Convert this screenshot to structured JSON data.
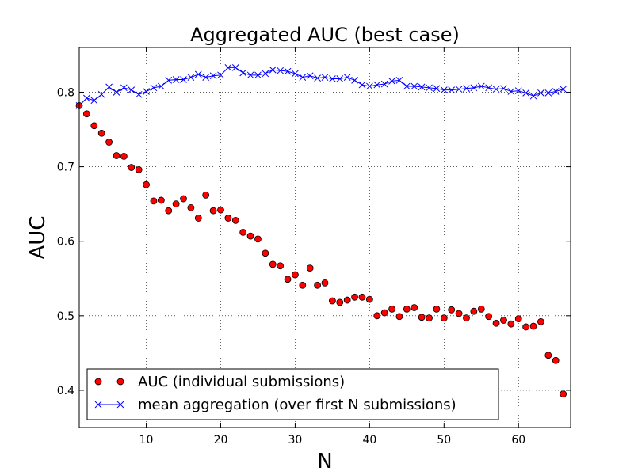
{
  "chart_data": {
    "type": "scatter",
    "title": "Aggregated AUC (best case)",
    "xlabel": "N",
    "ylabel": "AUC",
    "xlim": [
      1,
      67
    ],
    "ylim": [
      0.35,
      0.86
    ],
    "xticks": [
      10,
      20,
      30,
      40,
      50,
      60
    ],
    "yticks": [
      0.4,
      0.5,
      0.6,
      0.7,
      0.8
    ],
    "ytick_labels": [
      "0.4",
      "0.5",
      "0.6",
      "0.7",
      "0.8"
    ],
    "grid": true,
    "legend_position": "bottom-left",
    "series": [
      {
        "name": "AUC (individual submissions)",
        "style": "markers",
        "marker": "circle",
        "color": "#ff0000",
        "x": [
          1,
          2,
          3,
          4,
          5,
          6,
          7,
          8,
          9,
          10,
          11,
          12,
          13,
          14,
          15,
          16,
          17,
          18,
          19,
          20,
          21,
          22,
          23,
          24,
          25,
          26,
          27,
          28,
          29,
          30,
          31,
          32,
          33,
          34,
          35,
          36,
          37,
          38,
          39,
          40,
          41,
          42,
          43,
          44,
          45,
          46,
          47,
          48,
          49,
          50,
          51,
          52,
          53,
          54,
          55,
          56,
          57,
          58,
          59,
          60,
          61,
          62,
          63,
          64,
          65,
          66
        ],
        "y": [
          0.782,
          0.771,
          0.755,
          0.745,
          0.733,
          0.715,
          0.714,
          0.699,
          0.696,
          0.676,
          0.654,
          0.655,
          0.641,
          0.65,
          0.657,
          0.645,
          0.631,
          0.662,
          0.641,
          0.642,
          0.631,
          0.628,
          0.612,
          0.607,
          0.603,
          0.584,
          0.569,
          0.567,
          0.549,
          0.555,
          0.541,
          0.564,
          0.541,
          0.544,
          0.52,
          0.518,
          0.521,
          0.525,
          0.525,
          0.522,
          0.5,
          0.504,
          0.509,
          0.499,
          0.509,
          0.511,
          0.498,
          0.497,
          0.509,
          0.497,
          0.508,
          0.503,
          0.497,
          0.506,
          0.509,
          0.499,
          0.49,
          0.494,
          0.489,
          0.496,
          0.485,
          0.486,
          0.492,
          0.447,
          0.44,
          0.395
        ]
      },
      {
        "name": "mean aggregation (over first N submissions)",
        "style": "line-x",
        "marker": "x",
        "color": "#0000ff",
        "x": [
          1,
          2,
          3,
          4,
          5,
          6,
          7,
          8,
          9,
          10,
          11,
          12,
          13,
          14,
          15,
          16,
          17,
          18,
          19,
          20,
          21,
          22,
          23,
          24,
          25,
          26,
          27,
          28,
          29,
          30,
          31,
          32,
          33,
          34,
          35,
          36,
          37,
          38,
          39,
          40,
          41,
          42,
          43,
          44,
          45,
          46,
          47,
          48,
          49,
          50,
          51,
          52,
          53,
          54,
          55,
          56,
          57,
          58,
          59,
          60,
          61,
          62,
          63,
          64,
          65,
          66
        ],
        "y": [
          0.782,
          0.792,
          0.789,
          0.797,
          0.807,
          0.8,
          0.806,
          0.803,
          0.797,
          0.801,
          0.806,
          0.808,
          0.816,
          0.817,
          0.817,
          0.82,
          0.824,
          0.82,
          0.822,
          0.823,
          0.833,
          0.833,
          0.826,
          0.823,
          0.823,
          0.825,
          0.83,
          0.829,
          0.828,
          0.825,
          0.82,
          0.822,
          0.819,
          0.82,
          0.818,
          0.818,
          0.82,
          0.816,
          0.81,
          0.808,
          0.81,
          0.811,
          0.815,
          0.816,
          0.808,
          0.808,
          0.807,
          0.806,
          0.805,
          0.803,
          0.803,
          0.804,
          0.805,
          0.806,
          0.808,
          0.806,
          0.804,
          0.805,
          0.801,
          0.802,
          0.799,
          0.795,
          0.799,
          0.799,
          0.801,
          0.804
        ]
      }
    ]
  }
}
